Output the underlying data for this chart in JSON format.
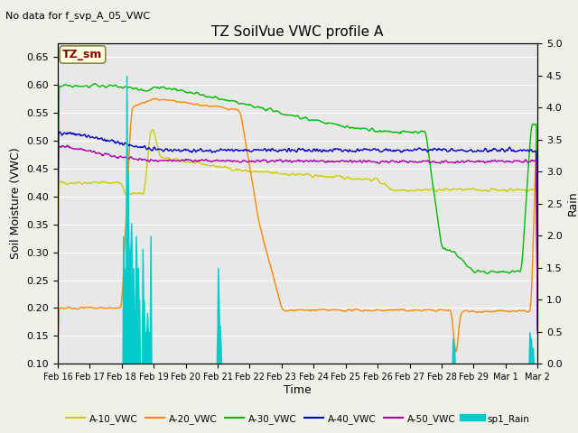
{
  "title": "TZ SoilVue VWC profile A",
  "subtitle": "No data for f_svp_A_05_VWC",
  "xlabel": "Time",
  "ylabel_left": "Soil Moisture (VWC)",
  "ylabel_right": "Rain",
  "annotation": "TZ_sm",
  "ylim_left": [
    0.1,
    0.675
  ],
  "ylim_right": [
    0.0,
    5.0
  ],
  "yticks_left": [
    0.1,
    0.15,
    0.2,
    0.25,
    0.3,
    0.35,
    0.4,
    0.45,
    0.5,
    0.55,
    0.6,
    0.65
  ],
  "yticks_right": [
    0.0,
    0.5,
    1.0,
    1.5,
    2.0,
    2.5,
    3.0,
    3.5,
    4.0,
    4.5,
    5.0
  ],
  "colors": {
    "A10": "#cccc00",
    "A20": "#ff8800",
    "A30": "#00bb00",
    "A40": "#0000cc",
    "A50": "#aa00aa",
    "Rain": "#00cccc"
  },
  "legend": [
    {
      "label": "A-10_VWC",
      "color": "#cccc00"
    },
    {
      "label": "A-20_VWC",
      "color": "#ff8800"
    },
    {
      "label": "A-30_VWC",
      "color": "#00bb00"
    },
    {
      "label": "A-40_VWC",
      "color": "#0000cc"
    },
    {
      "label": "A-50_VWC",
      "color": "#aa00aa"
    },
    {
      "label": "sp1_Rain",
      "color": "#00cccc"
    }
  ],
  "plot_bg_color": "#e8e8e8",
  "grid_color": "#ffffff",
  "fig_bg_color": "#f0f0e8"
}
